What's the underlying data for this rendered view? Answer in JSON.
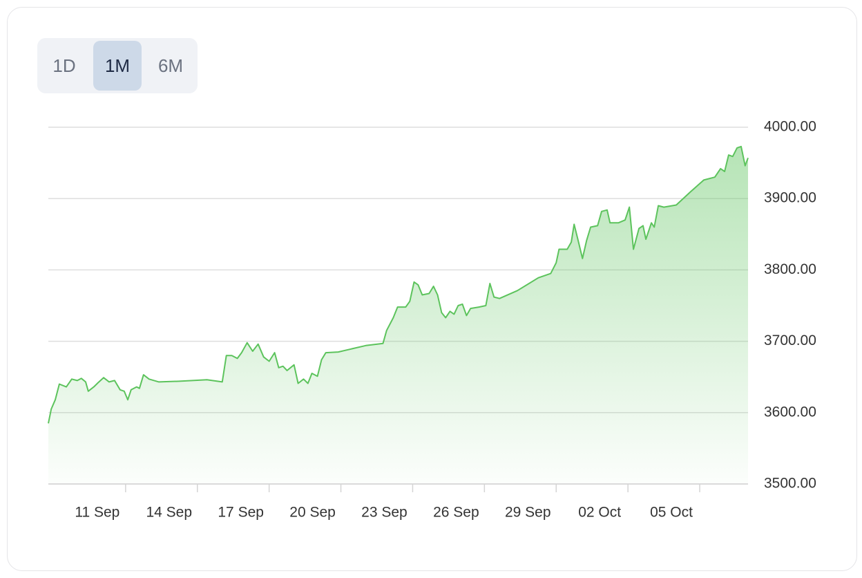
{
  "range_buttons": [
    "1D",
    "1M",
    "6M"
  ],
  "selected_range": "1M",
  "chart_data": {
    "type": "area",
    "color": "#5cc35c",
    "grid": true,
    "x": [
      7.77,
      7.89,
      8.06,
      8.23,
      8.52,
      8.75,
      8.98,
      9.15,
      9.33,
      9.44,
      9.67,
      9.85,
      10.08,
      10.31,
      10.54,
      10.77,
      10.94,
      11.09,
      11.23,
      11.46,
      11.58,
      11.75,
      11.98,
      12.39,
      13.25,
      14.4,
      15.04,
      15.21,
      15.44,
      15.67,
      15.85,
      16.08,
      16.31,
      16.54,
      16.77,
      17.0,
      17.23,
      17.4,
      17.58,
      17.75,
      18.04,
      18.21,
      18.44,
      18.62,
      18.79,
      19.02,
      19.19,
      19.37,
      19.89,
      21.04,
      21.76,
      21.91,
      22.19,
      22.37,
      22.71,
      22.88,
      23.06,
      23.23,
      23.4,
      23.69,
      23.87,
      24.04,
      24.21,
      24.38,
      24.56,
      24.73,
      24.9,
      25.08,
      25.25,
      25.42,
      25.77,
      26.06,
      26.23,
      26.4,
      26.63,
      27.38,
      28.25,
      28.77,
      29.0,
      29.12,
      29.46,
      29.63,
      29.75,
      29.92,
      30.1,
      30.27,
      30.44,
      30.73,
      30.9,
      31.13,
      31.25,
      31.6,
      31.88,
      32.06,
      32.23,
      32.46,
      32.63,
      32.75,
      32.98,
      33.1,
      33.27,
      33.5,
      34.02,
      34.6,
      35.17,
      35.63,
      35.87,
      36.04,
      36.21,
      36.38,
      36.56,
      36.73,
      36.9,
      37.02
    ],
    "values": [
      3585,
      3605,
      3618,
      3640,
      3636,
      3647,
      3645,
      3648,
      3643,
      3630,
      3636,
      3642,
      3649,
      3643,
      3645,
      3632,
      3630,
      3618,
      3632,
      3636,
      3634,
      3653,
      3647,
      3643,
      3644,
      3646,
      3643,
      3680,
      3680,
      3676,
      3684,
      3698,
      3686,
      3696,
      3678,
      3672,
      3684,
      3663,
      3665,
      3659,
      3667,
      3641,
      3647,
      3641,
      3655,
      3651,
      3674,
      3684,
      3685,
      3694,
      3697,
      3715,
      3733,
      3748,
      3748,
      3756,
      3783,
      3779,
      3765,
      3767,
      3777,
      3765,
      3740,
      3733,
      3742,
      3738,
      3750,
      3752,
      3736,
      3746,
      3748,
      3750,
      3781,
      3762,
      3760,
      3771,
      3789,
      3795,
      3810,
      3829,
      3829,
      3839,
      3864,
      3841,
      3816,
      3841,
      3860,
      3862,
      3882,
      3884,
      3866,
      3866,
      3870,
      3888,
      3829,
      3858,
      3862,
      3843,
      3866,
      3860,
      3890,
      3888,
      3891,
      3909,
      3926,
      3930,
      3942,
      3938,
      3961,
      3959,
      3971,
      3973,
      3946,
      3957
    ],
    "xlim": [
      7.77,
      37.02
    ],
    "xticks": [
      {
        "value": 11,
        "label": "11 Sep"
      },
      {
        "value": 14,
        "label": "14 Sep"
      },
      {
        "value": 17,
        "label": "17 Sep"
      },
      {
        "value": 20,
        "label": "20 Sep"
      },
      {
        "value": 23,
        "label": "23 Sep"
      },
      {
        "value": 26,
        "label": "26 Sep"
      },
      {
        "value": 29,
        "label": "29 Sep"
      },
      {
        "value": 32,
        "label": "02 Oct"
      },
      {
        "value": 35,
        "label": "05 Oct"
      }
    ],
    "ylim": [
      3500,
      4000
    ],
    "yticks": [
      {
        "value": 3500,
        "label": "3500.00"
      },
      {
        "value": 3600,
        "label": "3600.00"
      },
      {
        "value": 3700,
        "label": "3700.00"
      },
      {
        "value": 3800,
        "label": "3800.00"
      },
      {
        "value": 3900,
        "label": "3900.00"
      },
      {
        "value": 4000,
        "label": "4000.00"
      }
    ]
  }
}
